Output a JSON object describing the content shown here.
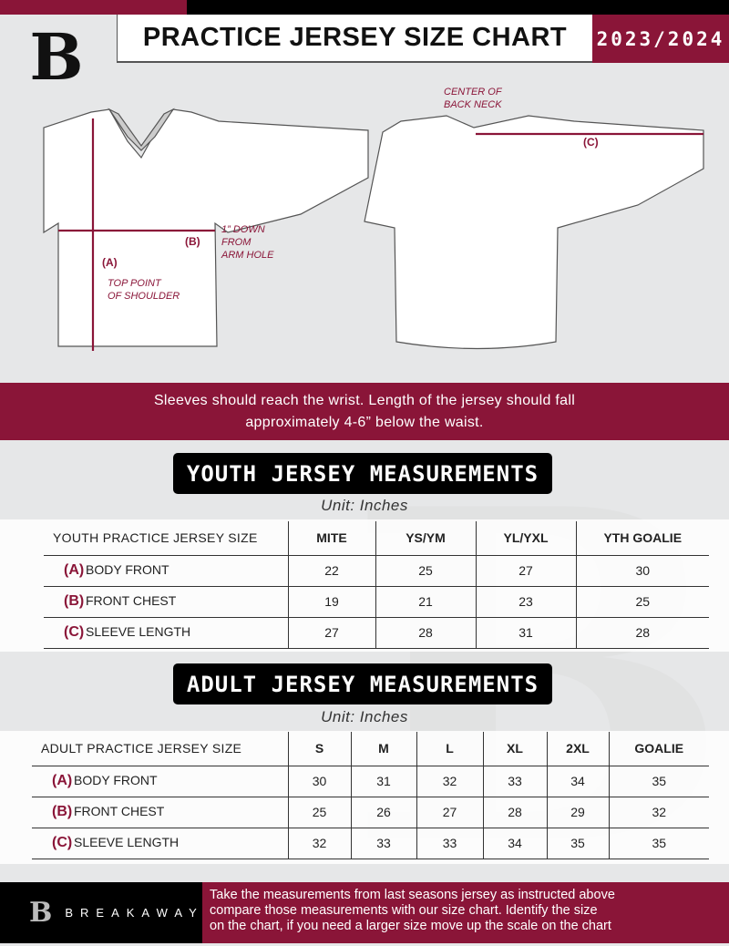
{
  "header": {
    "title": "PRACTICE JERSEY SIZE CHART",
    "season": "2023/2024",
    "logo": "B"
  },
  "diagram": {
    "front_labels": {
      "a": "(A)",
      "a_note": "TOP POINT\nOF SHOULDER",
      "b": "(B)",
      "b_note": "1” DOWN\nFROM\nARM HOLE"
    },
    "back_labels": {
      "center_note": "CENTER OF\nBACK NECK",
      "c": "(C)"
    }
  },
  "band_text_1": "Sleeves should reach the wrist. Length of the jersey should fall",
  "band_text_2": "approximately 4-6” below the waist.",
  "youth": {
    "title": "YOUTH JERSEY MEASUREMENTS",
    "unit": "Unit: Inches",
    "header": [
      "YOUTH PRACTICE JERSEY SIZE",
      "MITE",
      "YS/YM",
      "YL/YXL",
      "YTH GOALIE"
    ],
    "rows": [
      {
        "letter": "(A)",
        "label": "BODY FRONT",
        "values": [
          "22",
          "25",
          "27",
          "30"
        ]
      },
      {
        "letter": "(B)",
        "label": "FRONT CHEST",
        "values": [
          "19",
          "21",
          "23",
          "25"
        ]
      },
      {
        "letter": "(C)",
        "label": "SLEEVE LENGTH",
        "values": [
          "27",
          "28",
          "31",
          "28"
        ]
      }
    ]
  },
  "adult": {
    "title": "ADULT JERSEY MEASUREMENTS",
    "unit": "Unit: Inches",
    "header": [
      "ADULT PRACTICE JERSEY SIZE",
      "S",
      "M",
      "L",
      "XL",
      "2XL",
      "GOALIE"
    ],
    "rows": [
      {
        "letter": "(A)",
        "label": "BODY FRONT",
        "values": [
          "30",
          "31",
          "32",
          "33",
          "34",
          "35"
        ]
      },
      {
        "letter": "(B)",
        "label": "FRONT CHEST",
        "values": [
          "25",
          "26",
          "27",
          "28",
          "29",
          "32"
        ]
      },
      {
        "letter": "(C)",
        "label": "SLEEVE LENGTH",
        "values": [
          "32",
          "33",
          "33",
          "34",
          "35",
          "35"
        ]
      }
    ]
  },
  "footer": {
    "brand": "BREAKAWAY",
    "logo": "B",
    "text_1": "Take the measurements from last seasons jersey as instructed above",
    "text_2": "compare those measurements  with our size chart. Identify the size",
    "text_3": "on the chart, if you need a larger size move up the scale on the chart"
  },
  "colors": {
    "accent": "#8a1538",
    "dark": "#000000",
    "background": "#e6e7e8"
  }
}
